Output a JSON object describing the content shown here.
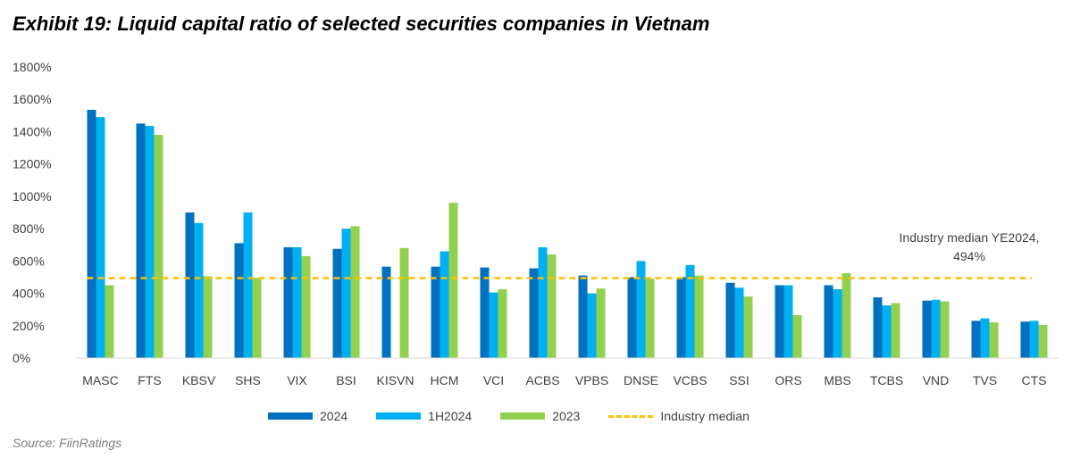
{
  "title": "Exhibit 19: Liquid capital ratio of selected securities companies in Vietnam",
  "source": "Source: FiinRatings",
  "chart_data": {
    "type": "bar",
    "title": "Exhibit 19: Liquid capital ratio of selected securities companies in Vietnam",
    "xlabel": "",
    "ylabel": "",
    "ylim": [
      0,
      1800
    ],
    "yticks": [
      "0%",
      "200%",
      "400%",
      "600%",
      "800%",
      "1000%",
      "1200%",
      "1400%",
      "1600%",
      "1800%"
    ],
    "categories": [
      "MASC",
      "FTS",
      "KBSV",
      "SHS",
      "VIX",
      "BSI",
      "KISVN",
      "HCM",
      "VCI",
      "ACBS",
      "VPBS",
      "DNSE",
      "VCBS",
      "SSI",
      "ORS",
      "MBS",
      "TCBS",
      "VND",
      "TVS",
      "CTS"
    ],
    "series": [
      {
        "name": "2024",
        "color": "#0070C0",
        "values": [
          1535,
          1450,
          900,
          710,
          685,
          675,
          565,
          565,
          560,
          555,
          510,
          500,
          500,
          465,
          450,
          450,
          375,
          355,
          230,
          225
        ]
      },
      {
        "name": "1H2024",
        "color": "#00B0F0",
        "values": [
          1490,
          1435,
          835,
          900,
          685,
          800,
          0,
          660,
          405,
          685,
          400,
          600,
          575,
          435,
          450,
          425,
          325,
          360,
          245,
          230
        ]
      },
      {
        "name": "2023",
        "color": "#92D050",
        "values": [
          450,
          1380,
          505,
          495,
          630,
          815,
          680,
          960,
          425,
          640,
          430,
          490,
          510,
          380,
          265,
          525,
          340,
          350,
          220,
          205
        ]
      }
    ],
    "reference_line": {
      "name": "Industry median",
      "value": 494,
      "color": "#FFC000",
      "style": "dashed"
    },
    "annotation": {
      "line1": "Industry median YE2024,",
      "line2": "494%"
    },
    "grid": false,
    "legend": "bottom"
  }
}
